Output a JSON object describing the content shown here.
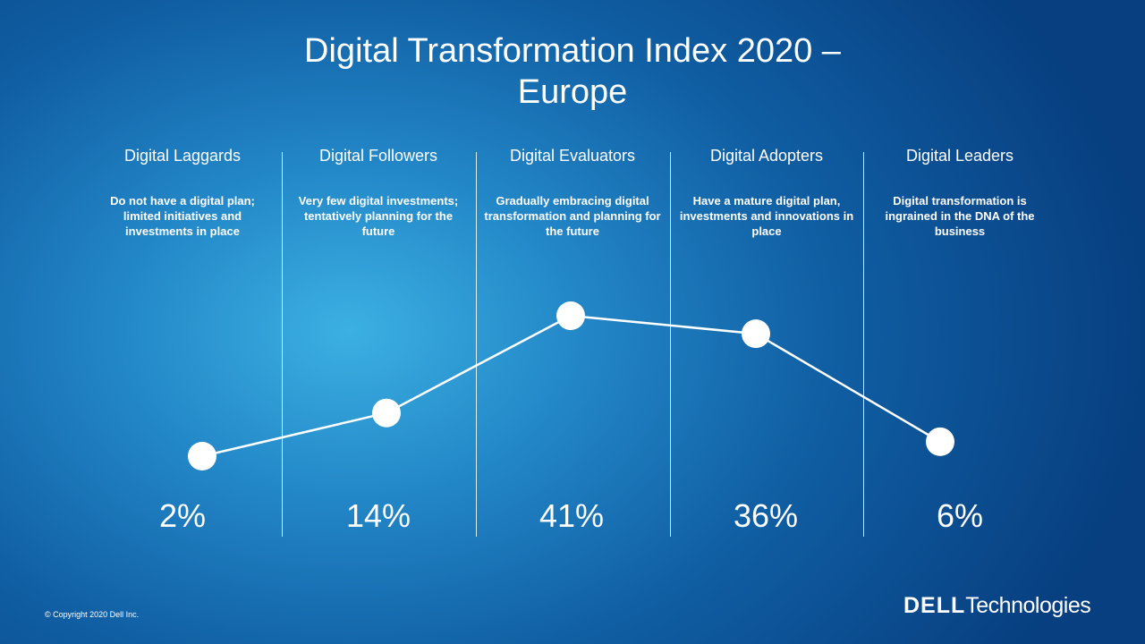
{
  "title": {
    "line1": "Digital Transformation Index 2020 –",
    "line2": "Europe"
  },
  "chart_data": {
    "type": "line",
    "categories": [
      "Digital Laggards",
      "Digital Followers",
      "Digital Evaluators",
      "Digital Adopters",
      "Digital Leaders"
    ],
    "descriptions": [
      "Do not have a digital plan; limited initiatives and investments in place",
      "Very few digital investments; tentatively planning for the future",
      "Gradually embracing digital transformation and planning for the future",
      "Have a mature digital plan, investments and innovations in place",
      "Digital transformation is ingrained in the DNA of the business"
    ],
    "values": [
      2,
      14,
      41,
      36,
      6
    ],
    "value_labels": [
      "2%",
      "14%",
      "41%",
      "36%",
      "6%"
    ],
    "unit": "%",
    "grid": false,
    "legend": "none",
    "colors": {
      "line": "#ffffff",
      "marker": "#ffffff",
      "background_light": "#3cb0e2",
      "background_dark": "#073f80"
    }
  },
  "footer": {
    "copyright": "© Copyright 2020 Dell Inc.",
    "logo_brand": "DELL",
    "logo_suffix": "Technologies"
  }
}
